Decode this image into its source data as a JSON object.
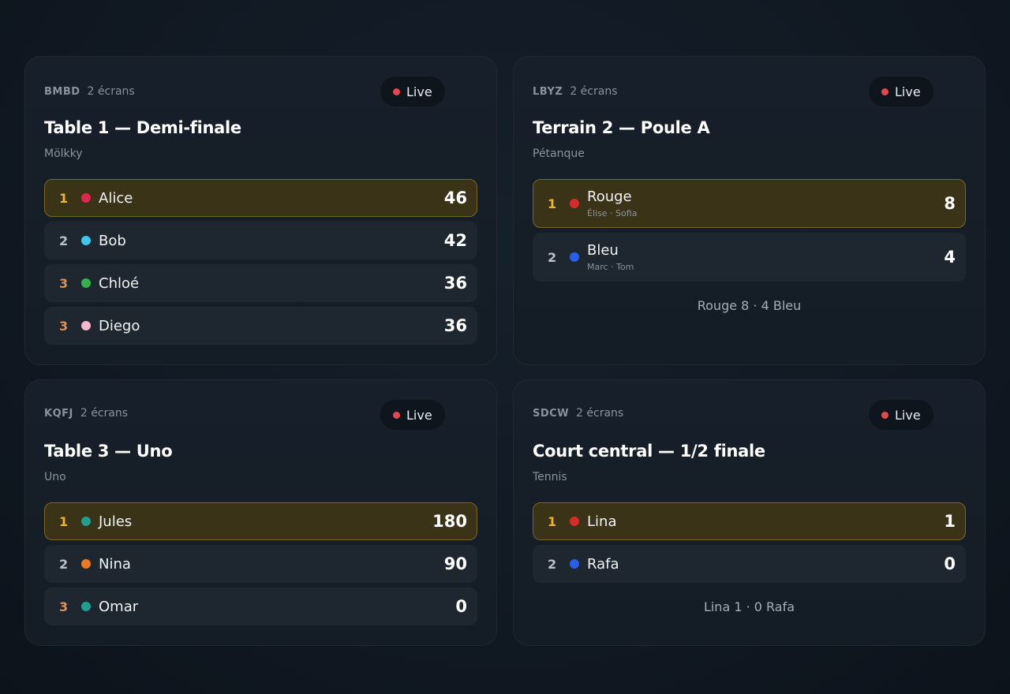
{
  "cards": [
    {
      "code": "BMBD",
      "screens": "2 écrans",
      "status": "Live",
      "title": "Table 1 — Demi-finale",
      "game": "Mölkky",
      "rows": [
        {
          "rank": "1",
          "name": "Alice",
          "score": "46",
          "color": "#e0264f"
        },
        {
          "rank": "2",
          "name": "Bob",
          "score": "42",
          "color": "#3fc6ec"
        },
        {
          "rank": "3",
          "name": "Chloé",
          "score": "36",
          "color": "#34b04f"
        },
        {
          "rank": "3",
          "name": "Diego",
          "score": "36",
          "color": "#f5b7cd"
        }
      ]
    },
    {
      "code": "LBYZ",
      "screens": "2 écrans",
      "status": "Live",
      "title": "Terrain 2 — Poule A",
      "game": "Pétanque",
      "rows": [
        {
          "rank": "1",
          "name": "Rouge",
          "members": "Élise · Sofia",
          "score": "8",
          "color": "#d62b2b"
        },
        {
          "rank": "2",
          "name": "Bleu",
          "members": "Marc · Tom",
          "score": "4",
          "color": "#2a5ee8"
        }
      ],
      "summary": "Rouge 8 · 4 Bleu"
    },
    {
      "code": "KQFJ",
      "screens": "2 écrans",
      "status": "Live",
      "title": "Table 3 — Uno",
      "game": "Uno",
      "rows": [
        {
          "rank": "1",
          "name": "Jules",
          "score": "180",
          "color": "#1fa08f"
        },
        {
          "rank": "2",
          "name": "Nina",
          "score": "90",
          "color": "#ec7a22"
        },
        {
          "rank": "3",
          "name": "Omar",
          "score": "0",
          "color": "#1fa08f"
        }
      ]
    },
    {
      "code": "SDCW",
      "screens": "2 écrans",
      "status": "Live",
      "title": "Court central — 1/2 finale",
      "game": "Tennis",
      "rows": [
        {
          "rank": "1",
          "name": "Lina",
          "score": "1",
          "color": "#d62b2b"
        },
        {
          "rank": "2",
          "name": "Rafa",
          "score": "0",
          "color": "#2a5ee8"
        }
      ],
      "summary": "Lina 1 · 0 Rafa"
    }
  ]
}
